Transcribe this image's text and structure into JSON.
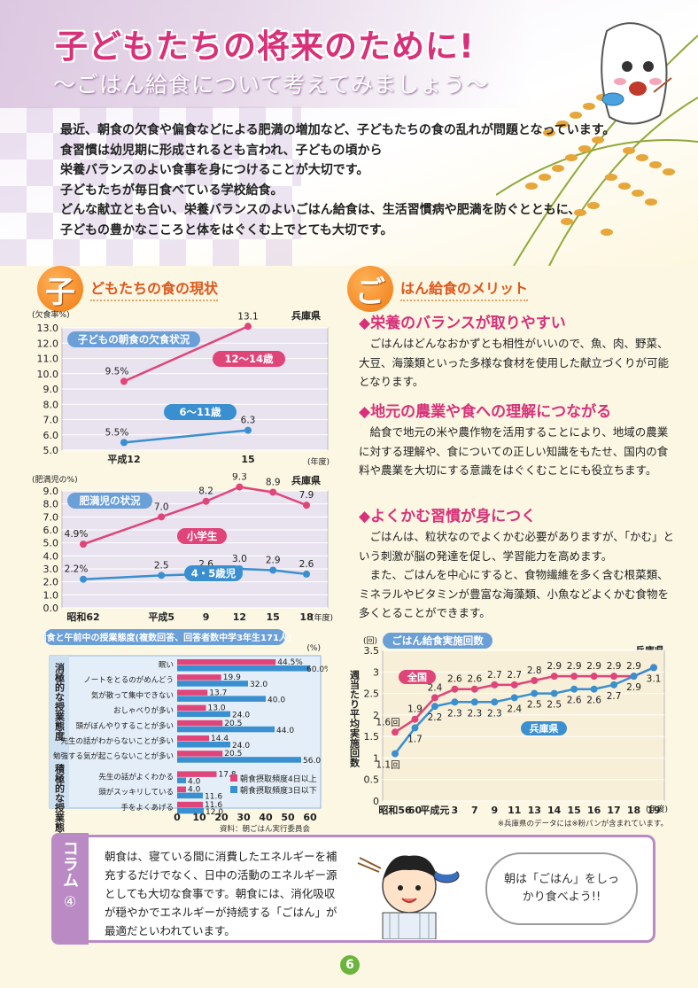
{
  "header": {
    "title": "子どもたちの将来のために!",
    "subtitle": "〜ごはん給食について考えてみましょう〜"
  },
  "intro": [
    "最近、朝食の欠食や偏食などによる肥満の増加など、子どもたちの食の乱れが問題となっています。",
    "食習慣は幼児期に形成されるとも言われ、子どもの頃から",
    "栄養バランスのよい食事を身につけることが大切です。",
    "子どもたちが毎日食べている学校給食。",
    "どんな献立とも合い、栄養バランスのよいごはん給食は、生活習慣病や肥満を防ぐとともに、",
    "子どもの豊かなこころと体をはぐくむ上でとても大切です。"
  ],
  "section_left": {
    "badge": "子",
    "text": "どもたちの食の現状"
  },
  "section_right": {
    "badge": "ご",
    "text": "はん給食のメリット"
  },
  "merits": [
    {
      "title": "◆栄養のバランスが取りやすい",
      "body": "　ごはんはどんなおかずとも相性がいいので、魚、肉、野菜、大豆、海藻類といった多様な食材を使用した献立づくりが可能となります。"
    },
    {
      "title": "◆地元の農業や食への理解につながる",
      "body": "　給食で地元の米や農作物を活用することにより、地域の農業に対する理解や、食についての正しい知識をもたせ、国内の食料や農業を大切にする意識をはぐくむことにも役立ちます。"
    },
    {
      "title": "◆よくかむ習慣が身につく",
      "body": "　ごはんは、粒状なのでよくかむ必要がありますが、「かむ」という刺激が脳の発達を促し、学習能力を高めます。\n　また、ごはんを中心にすると、食物繊維を多く含む根菜類、ミネラルやビタミンが豊富な海藻類、小魚などよくかむ食物を多くとることができます。"
    }
  ],
  "column": {
    "label": "コラム",
    "number": "④",
    "text": "朝食は、寝ている間に消費したエネルギーを補充するだけでなく、日中の活動のエネルギー源としても大切な食事です。朝食には、消化吸収が穏やかでエネルギーが持続する「ごはん」が最適だといわれています。",
    "speech": "朝は「ごはん」をしっかり食べよう!!"
  },
  "page_number": "6",
  "chart_data": [
    {
      "type": "line",
      "title": "子どもの朝食の欠食状況",
      "region": "兵庫県",
      "ylabel": "(欠食率%)",
      "xunit": "(年度)",
      "x": [
        "平成12",
        "15"
      ],
      "yticks": [
        "13.0",
        "12.0",
        "11.0",
        "10.0",
        "9.0",
        "8.0",
        "7.0",
        "6.0",
        "5.0"
      ],
      "ylim": [
        5,
        13
      ],
      "series": [
        {
          "name": "12〜14歳",
          "values": [
            9.5,
            13.1
          ],
          "labels": [
            "9.5%",
            "13.1"
          ],
          "color": "#e0457a"
        },
        {
          "name": "6〜11歳",
          "values": [
            5.5,
            6.3
          ],
          "labels": [
            "5.5%",
            "6.3"
          ],
          "color": "#3a8fd0"
        }
      ]
    },
    {
      "type": "line",
      "title": "肥満児の状況",
      "region": "兵庫県",
      "ylabel": "(肥満児の%)",
      "xunit": "(年度)",
      "x": [
        "昭和62",
        "平成5",
        "9",
        "12",
        "15",
        "18"
      ],
      "xvals": [
        62,
        69,
        73,
        76,
        79,
        82
      ],
      "yticks": [
        "9.0",
        "8.0",
        "7.0",
        "6.0",
        "5.0",
        "4.0",
        "3.0",
        "2.0",
        "1.0",
        "0.0"
      ],
      "ylim": [
        0,
        9
      ],
      "series": [
        {
          "name": "小学生",
          "values": [
            4.9,
            7.0,
            8.2,
            9.3,
            8.9,
            7.9
          ],
          "labels": [
            "4.9%",
            "7.0",
            "8.2",
            "9.3",
            "8.9",
            "7.9"
          ],
          "color": "#e0457a"
        },
        {
          "name": "4・5歳児",
          "values": [
            2.2,
            2.5,
            2.6,
            3.0,
            2.9,
            2.6
          ],
          "labels": [
            "2.2%",
            "2.5",
            "2.6",
            "3.0",
            "2.9",
            "2.6"
          ],
          "color": "#3a8fd0"
        }
      ]
    },
    {
      "type": "bar",
      "title": "朝食と午前中の授業態度(複数回答、回答者数中学3年生171人)",
      "unit": "(%)",
      "groups": [
        "消極的な授業態度",
        "積極的な授業態度"
      ],
      "categories": [
        "眠い",
        "ノートをとるのがめんどう",
        "気が散って集中できない",
        "おしゃべりが多い",
        "頭がぼんやりすることが多い",
        "先生の話がわからないことが多い",
        "勉強する気が起こらないことが多い",
        "先生の話がよくわかる",
        "頭がスッキリしている",
        "手をよくあげる"
      ],
      "xticks": [
        "0",
        "10",
        "20",
        "30",
        "40",
        "50",
        "60"
      ],
      "xlim": [
        0,
        60
      ],
      "series": [
        {
          "name": "朝食摂取頻度4日以上",
          "values": [
            44.5,
            19.9,
            13.7,
            13.0,
            20.5,
            14.4,
            20.5,
            17.8,
            4.0,
            11.6
          ],
          "color": "#e0457a"
        },
        {
          "name": "朝食摂取頻度3日以下",
          "values": [
            60.0,
            32.0,
            40.0,
            24.0,
            44.0,
            24.0,
            56.0,
            4.0,
            11.6,
            12.0
          ],
          "color": "#3a8fd0"
        }
      ],
      "labels_pink": [
        "44.5%",
        "19.9",
        "13.7",
        "13.0",
        "20.5",
        "14.4",
        "20.5",
        "17.8",
        "4.0",
        "11.6"
      ],
      "labels_blue": [
        "60.0%",
        "32.0",
        "40.0",
        "24.0",
        "44.0",
        "24.0",
        "56.0",
        "4.0",
        "11.6",
        "12.0"
      ],
      "source": "資料：朝ごはん実行委員会"
    },
    {
      "type": "line",
      "title": "ごはん給食実施回数",
      "region": "兵庫県",
      "ylabel": "週当たり平均実施回数",
      "yunit": "(回)",
      "xunit": "(年度)",
      "x": [
        "昭和56",
        "60",
        "平成元",
        "3",
        "7",
        "9",
        "11",
        "13",
        "14",
        "15",
        "16",
        "17",
        "18",
        "19"
      ],
      "yticks": [
        "3.5",
        "3",
        "2.5",
        "2",
        "1.5",
        "1",
        "0.5",
        "0"
      ],
      "ylim": [
        0,
        3.5
      ],
      "series": [
        {
          "name": "全国",
          "values": [
            1.6,
            1.9,
            2.4,
            2.6,
            2.6,
            2.7,
            2.7,
            2.8,
            2.9,
            2.9,
            2.9,
            2.9,
            2.9,
            3.1
          ],
          "labels": [
            "1.6回",
            "1.9",
            "2.4",
            "2.6",
            "2.6",
            "2.7",
            "2.7",
            "2.8",
            "2.9",
            "2.9",
            "2.9",
            "2.9",
            "2.9",
            ""
          ],
          "color": "#e0457a"
        },
        {
          "name": "兵庫県",
          "values": [
            1.1,
            1.7,
            2.2,
            2.3,
            2.3,
            2.3,
            2.4,
            2.5,
            2.5,
            2.6,
            2.6,
            2.7,
            2.9,
            3.1
          ],
          "labels": [
            "1.1回",
            "1.7",
            "2.2",
            "2.3",
            "2.3",
            "2.3",
            "2.4",
            "2.5",
            "2.5",
            "2.6",
            "2.6",
            "2.7",
            "2.9",
            "3.1"
          ],
          "color": "#3a8fd0"
        }
      ],
      "note": "※兵庫県のデータには※粉パンが含まれています。"
    }
  ]
}
